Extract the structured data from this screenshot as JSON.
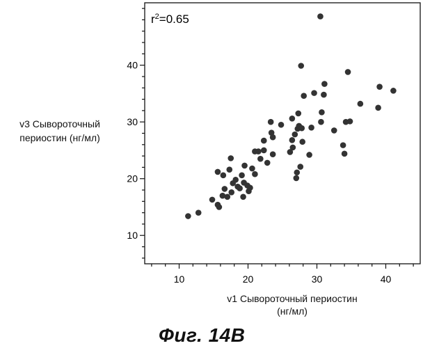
{
  "chart_data": {
    "type": "scatter",
    "title": "",
    "xlabel_lines": [
      "v1 Сывороточный периостин",
      "(нг/мл)"
    ],
    "ylabel_lines": [
      "v3 Сывороточный",
      "периостин (нг/мл)"
    ],
    "annotation": {
      "prefix": "r",
      "superscript": "2",
      "suffix": "=0.65"
    },
    "xlim": [
      5,
      45
    ],
    "ylim": [
      5,
      51
    ],
    "x_ticks": [
      10,
      20,
      30,
      40
    ],
    "y_ticks": [
      10,
      20,
      30,
      40
    ],
    "grid": false,
    "marker_color": "#333333",
    "points": [
      [
        11.3,
        13.4
      ],
      [
        12.8,
        14.0
      ],
      [
        14.8,
        16.3
      ],
      [
        15.6,
        15.4
      ],
      [
        15.8,
        15.0
      ],
      [
        15.6,
        21.2
      ],
      [
        16.4,
        20.6
      ],
      [
        16.3,
        17.0
      ],
      [
        16.6,
        18.2
      ],
      [
        17.0,
        16.8
      ],
      [
        17.3,
        21.6
      ],
      [
        17.5,
        23.6
      ],
      [
        17.8,
        19.2
      ],
      [
        17.6,
        17.6
      ],
      [
        18.2,
        19.8
      ],
      [
        18.5,
        18.6
      ],
      [
        18.8,
        18.3
      ],
      [
        19.1,
        20.6
      ],
      [
        19.3,
        16.8
      ],
      [
        19.4,
        19.3
      ],
      [
        19.5,
        22.3
      ],
      [
        19.9,
        18.8
      ],
      [
        20.1,
        17.8
      ],
      [
        20.3,
        18.4
      ],
      [
        20.6,
        21.8
      ],
      [
        21.0,
        20.8
      ],
      [
        21.0,
        24.8
      ],
      [
        21.5,
        24.8
      ],
      [
        21.8,
        23.5
      ],
      [
        22.3,
        26.7
      ],
      [
        22.3,
        25.0
      ],
      [
        22.8,
        22.8
      ],
      [
        23.3,
        30.0
      ],
      [
        23.4,
        28.1
      ],
      [
        23.6,
        27.3
      ],
      [
        23.6,
        24.3
      ],
      [
        24.8,
        29.5
      ],
      [
        26.1,
        24.7
      ],
      [
        26.4,
        30.6
      ],
      [
        26.4,
        26.8
      ],
      [
        26.5,
        25.5
      ],
      [
        26.8,
        27.8
      ],
      [
        27.0,
        20.1
      ],
      [
        27.1,
        21.1
      ],
      [
        27.2,
        28.8
      ],
      [
        27.3,
        31.5
      ],
      [
        27.4,
        29.3
      ],
      [
        27.6,
        22.1
      ],
      [
        27.7,
        39.9
      ],
      [
        27.8,
        28.9
      ],
      [
        27.9,
        26.5
      ],
      [
        28.1,
        34.6
      ],
      [
        28.9,
        24.2
      ],
      [
        29.2,
        29.0
      ],
      [
        29.6,
        35.1
      ],
      [
        30.5,
        48.6
      ],
      [
        30.6,
        30.0
      ],
      [
        30.7,
        31.7
      ],
      [
        31.1,
        36.7
      ],
      [
        31.0,
        34.8
      ],
      [
        32.5,
        28.5
      ],
      [
        33.8,
        25.9
      ],
      [
        34.0,
        24.4
      ],
      [
        34.2,
        30.0
      ],
      [
        34.5,
        38.8
      ],
      [
        34.8,
        30.1
      ],
      [
        36.3,
        33.2
      ],
      [
        38.9,
        32.5
      ],
      [
        39.1,
        36.2
      ],
      [
        41.1,
        35.5
      ]
    ]
  },
  "figure_caption": "Фиг. 14B"
}
